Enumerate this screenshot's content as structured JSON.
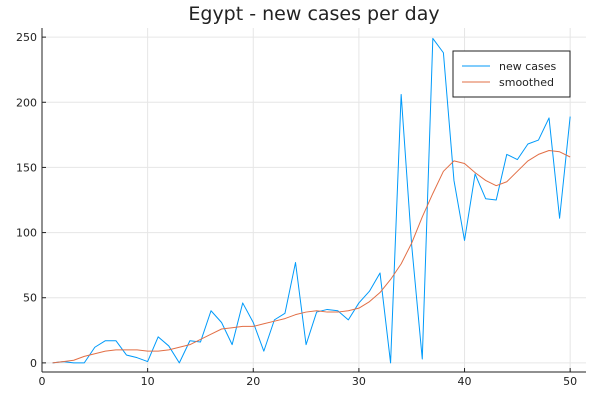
{
  "chart_data": {
    "type": "line",
    "title": "Egypt - new cases per day",
    "xlabel": "",
    "ylabel": "",
    "xlim": [
      0,
      51.5
    ],
    "ylim": [
      -7,
      257
    ],
    "x_ticks": [
      0,
      10,
      20,
      30,
      40,
      50
    ],
    "y_ticks": [
      0,
      50,
      100,
      150,
      200,
      250
    ],
    "grid": true,
    "legend_position": "top-right",
    "x": [
      1,
      2,
      3,
      4,
      5,
      6,
      7,
      8,
      9,
      10,
      11,
      12,
      13,
      14,
      15,
      16,
      17,
      18,
      19,
      20,
      21,
      22,
      23,
      24,
      25,
      26,
      27,
      28,
      29,
      30,
      31,
      32,
      33,
      34,
      35,
      36,
      37,
      38,
      39,
      40,
      41,
      42,
      43,
      44,
      45,
      46,
      47,
      48,
      49,
      50
    ],
    "series": [
      {
        "name": "new cases",
        "color": "#009AFA",
        "values": [
          0,
          1,
          0,
          0,
          12,
          17,
          17,
          6,
          4,
          1,
          20,
          13,
          0,
          17,
          16,
          40,
          31,
          14,
          46,
          31,
          9,
          33,
          38,
          77,
          14,
          39,
          41,
          40,
          33,
          46,
          55,
          69,
          0,
          206,
          90,
          3,
          249,
          238,
          140,
          94,
          145,
          126,
          125,
          160,
          156,
          168,
          171,
          188,
          111,
          189
        ]
      },
      {
        "name": "smoothed",
        "color": "#E26F46",
        "values": [
          0,
          1,
          2,
          5,
          7,
          9,
          10,
          10,
          10,
          9,
          9,
          10,
          12,
          14,
          18,
          22,
          26,
          27,
          28,
          28,
          30,
          32,
          34,
          37,
          39,
          40,
          39,
          39,
          40,
          42,
          47,
          54,
          64,
          76,
          92,
          112,
          130,
          147,
          155,
          153,
          146,
          140,
          136,
          139,
          147,
          155,
          160,
          163,
          162,
          158
        ]
      }
    ]
  }
}
